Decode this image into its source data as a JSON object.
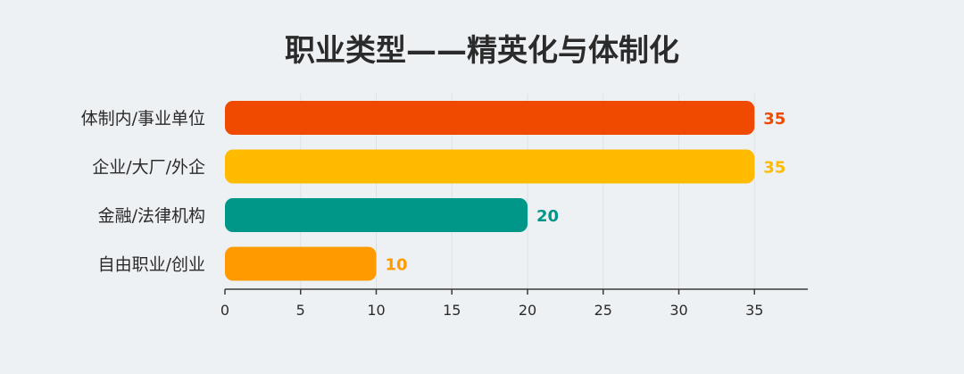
{
  "chart_data": {
    "type": "bar",
    "orientation": "horizontal",
    "title": "职业类型——精英化与体制化",
    "xlabel": "",
    "ylabel": "",
    "categories": [
      "体制内/事业单位",
      "企业/大厂/外企",
      "金融/法律机构",
      "自由职业/创业"
    ],
    "values": [
      35,
      35,
      20,
      10
    ],
    "colors": [
      "#f04a00",
      "#ffbb00",
      "#009688",
      "#ff9b00"
    ],
    "xlim": [
      0,
      38
    ],
    "xticks": [
      0,
      5,
      10,
      15,
      20,
      25,
      30,
      35
    ],
    "grid": true,
    "legend": "none"
  }
}
